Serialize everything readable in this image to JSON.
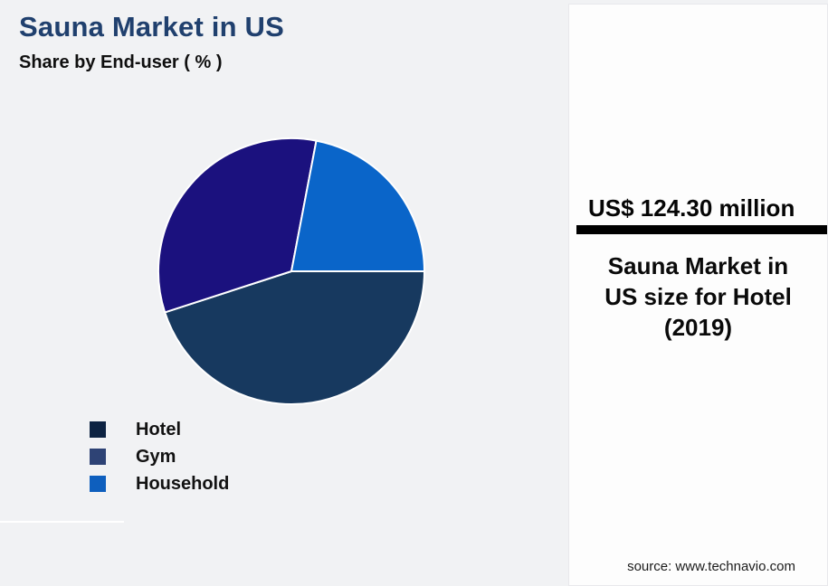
{
  "chart_data": {
    "type": "pie",
    "title": "Sauna Market in US",
    "subtitle": "Share by End-user ( % )",
    "unit": "%",
    "series": [
      {
        "name": "Hotel",
        "value": 45,
        "slice_color": "#17395f",
        "legend_color": "#0d2342"
      },
      {
        "name": "Gym",
        "value": 33,
        "slice_color": "#1b117e",
        "legend_color": "#2e4375"
      },
      {
        "name": "Household",
        "value": 22,
        "slice_color": "#0a65c9",
        "legend_color": "#0e5fbe"
      }
    ],
    "start_at": "3-oclock",
    "direction": "clockwise",
    "legend_position": "bottom-left",
    "slice_border_color": "#ffffff"
  },
  "panel": {
    "stat_value": "US$ 124.30 million",
    "caption_lines": [
      "Sauna Market in",
      "US size for Hotel",
      "(2019)"
    ],
    "source": "source: www.technavio.com"
  },
  "colors": {
    "background": "#f1f2f4",
    "card_background": "#fdfdfd",
    "title": "#20406e",
    "divider": "#000000"
  }
}
